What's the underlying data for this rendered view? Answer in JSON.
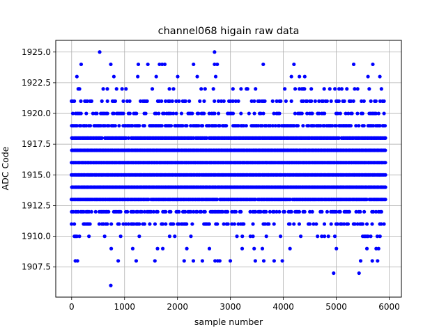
{
  "chart_data": {
    "type": "scatter",
    "title": "channel068 higain raw data",
    "xlabel": "sample number",
    "ylabel": "ADC Code",
    "xlim": [
      -300,
      6230
    ],
    "ylim": [
      1905.05,
      1925.95
    ],
    "grid": true,
    "marker_color": "#0000ff",
    "x_ticks": [
      0,
      1000,
      2000,
      3000,
      4000,
      5000,
      6000
    ],
    "x_tick_labels": [
      "0",
      "1000",
      "2000",
      "3000",
      "4000",
      "5000",
      "6000"
    ],
    "y_ticks": [
      1907.5,
      1910.0,
      1912.5,
      1915.0,
      1917.5,
      1920.0,
      1922.5,
      1925.0
    ],
    "y_tick_labels": [
      "1907.5",
      "1910.0",
      "1912.5",
      "1915.0",
      "1917.5",
      "1920.0",
      "1922.5",
      "1925.0"
    ],
    "series": [
      {
        "x_range": [
          0,
          5930
        ],
        "level_density": {
          "1912": 0.6,
          "1913": 0.97,
          "1914": 1.0,
          "1915": 1.0,
          "1916": 1.0,
          "1917": 1.0,
          "1918": 0.97,
          "1919": 0.7,
          "1911": 0.4,
          "1920": 0.4,
          "1921": 0.3,
          "1910": 0.12,
          "1922": 0.12,
          "1909": 0.05,
          "1923": 0.04,
          "1908": 0.015,
          "1924": 0.012
        },
        "outliers": [
          {
            "x": 740,
            "y": 1906
          },
          {
            "x": 4950,
            "y": 1907
          },
          {
            "x": 5430,
            "y": 1907
          },
          {
            "x": 530,
            "y": 1925
          },
          {
            "x": 2700,
            "y": 1925
          },
          {
            "x": 70,
            "y": 1908
          },
          {
            "x": 110,
            "y": 1908
          },
          {
            "x": 880,
            "y": 1908
          },
          {
            "x": 1220,
            "y": 1908
          },
          {
            "x": 2300,
            "y": 1908
          },
          {
            "x": 2470,
            "y": 1908
          },
          {
            "x": 2710,
            "y": 1908
          },
          {
            "x": 2760,
            "y": 1908
          },
          {
            "x": 3470,
            "y": 1908
          },
          {
            "x": 3630,
            "y": 1908
          },
          {
            "x": 3980,
            "y": 1908
          },
          {
            "x": 5460,
            "y": 1908
          },
          {
            "x": 5680,
            "y": 1908
          },
          {
            "x": 5780,
            "y": 1908
          },
          {
            "x": 180,
            "y": 1924
          },
          {
            "x": 740,
            "y": 1924
          },
          {
            "x": 1260,
            "y": 1924
          },
          {
            "x": 1440,
            "y": 1924
          },
          {
            "x": 1660,
            "y": 1924
          },
          {
            "x": 1710,
            "y": 1924
          },
          {
            "x": 1760,
            "y": 1924
          },
          {
            "x": 2700,
            "y": 1924
          },
          {
            "x": 3620,
            "y": 1924
          },
          {
            "x": 4200,
            "y": 1924
          },
          {
            "x": 5690,
            "y": 1924
          }
        ]
      }
    ]
  }
}
